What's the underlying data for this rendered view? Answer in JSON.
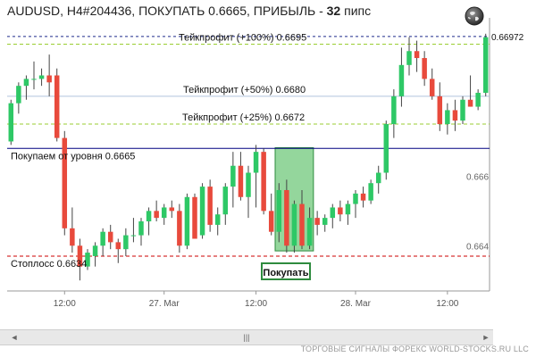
{
  "header": {
    "symbol_line": "AUDUSD, H4#204436, ПОКУПАТЬ 0.6665, ПРИБЫЛЬ - ",
    "profit_pips": "32",
    "profit_unit": " пипс"
  },
  "chart_data": {
    "type": "candlestick",
    "instrument": "AUDUSD",
    "timeframe": "H4",
    "ylim": [
      0.6625,
      0.67
    ],
    "price_ticks": [
      "0.66972",
      "0.666",
      "0.664"
    ],
    "time_ticks": [
      "12:00",
      "27. Mar",
      "12:00",
      "28. Mar",
      "12:00"
    ],
    "levels": [
      {
        "name": "Тейкпрофит (+100%) 0.6695",
        "price": 0.6695,
        "color": "#9acd32",
        "style": "dashed"
      },
      {
        "name": "Тейкпрофит (+50%) 0.6680",
        "price": 0.668,
        "color": "#b0c4de",
        "style": "solid"
      },
      {
        "name": "Тейкпрофит (+25%) 0.6672",
        "price": 0.6672,
        "color": "#9acd32",
        "style": "dashed"
      },
      {
        "name": "Покупаем от уровня 0.6665",
        "price": 0.6665,
        "color": "#000080",
        "style": "solid"
      },
      {
        "name": "Стоплосс 0.6634",
        "price": 0.6634,
        "color": "#cc0000",
        "style": "dashed"
      }
    ],
    "current_price": 0.66972,
    "entry_zone": {
      "from_candle": 35,
      "to_candle": 39,
      "low": 0.66355,
      "high": 0.66652
    },
    "candles": [
      [
        0.6667,
        0.6679,
        0.6666,
        0.6678
      ],
      [
        0.6678,
        0.6684,
        0.6675,
        0.6683
      ],
      [
        0.6683,
        0.6686,
        0.6679,
        0.6685
      ],
      [
        0.6685,
        0.669,
        0.6682,
        0.6685
      ],
      [
        0.6685,
        0.6688,
        0.6683,
        0.6686
      ],
      [
        0.6686,
        0.6692,
        0.668,
        0.6684
      ],
      [
        0.6686,
        0.6688,
        0.6667,
        0.6668
      ],
      [
        0.6668,
        0.667,
        0.664,
        0.6642
      ],
      [
        0.6642,
        0.6648,
        0.6635,
        0.6637
      ],
      [
        0.6637,
        0.6639,
        0.6627,
        0.6631
      ],
      [
        0.6631,
        0.6636,
        0.663,
        0.6635
      ],
      [
        0.6634,
        0.6638,
        0.6631,
        0.6637
      ],
      [
        0.6637,
        0.6642,
        0.6634,
        0.6641
      ],
      [
        0.6641,
        0.6643,
        0.6636,
        0.6638
      ],
      [
        0.6638,
        0.6639,
        0.6632,
        0.6636
      ],
      [
        0.6636,
        0.6642,
        0.6634,
        0.664
      ],
      [
        0.664,
        0.6645,
        0.6638,
        0.664
      ],
      [
        0.664,
        0.6645,
        0.6637,
        0.6644
      ],
      [
        0.6644,
        0.6648,
        0.664,
        0.6647
      ],
      [
        0.6647,
        0.665,
        0.6644,
        0.6645
      ],
      [
        0.6645,
        0.6649,
        0.6643,
        0.6648
      ],
      [
        0.6648,
        0.665,
        0.6645,
        0.6647
      ],
      [
        0.6647,
        0.6649,
        0.6635,
        0.6637
      ],
      [
        0.6637,
        0.6652,
        0.6636,
        0.6651
      ],
      [
        0.6651,
        0.6652,
        0.6639,
        0.6639
      ],
      [
        0.664,
        0.6655,
        0.6639,
        0.6654
      ],
      [
        0.6654,
        0.6656,
        0.6641,
        0.6643
      ],
      [
        0.6643,
        0.6648,
        0.664,
        0.6646
      ],
      [
        0.6646,
        0.6655,
        0.6643,
        0.6654
      ],
      [
        0.6654,
        0.6664,
        0.6648,
        0.666
      ],
      [
        0.666,
        0.6664,
        0.665,
        0.6651
      ],
      [
        0.6651,
        0.666,
        0.6645,
        0.6658
      ],
      [
        0.6658,
        0.6666,
        0.6648,
        0.6664
      ],
      [
        0.6664,
        0.6665,
        0.6646,
        0.6647
      ],
      [
        0.6647,
        0.6652,
        0.664,
        0.6641
      ],
      [
        0.6641,
        0.6655,
        0.6638,
        0.6653
      ],
      [
        0.6653,
        0.6656,
        0.6635,
        0.6637
      ],
      [
        0.6637,
        0.665,
        0.6635,
        0.6649
      ],
      [
        0.6649,
        0.6653,
        0.6636,
        0.6637
      ],
      [
        0.6637,
        0.6648,
        0.6636,
        0.6645
      ],
      [
        0.6645,
        0.6647,
        0.664,
        0.6643
      ],
      [
        0.6643,
        0.6646,
        0.6641,
        0.6645
      ],
      [
        0.6645,
        0.6649,
        0.6642,
        0.6648
      ],
      [
        0.6648,
        0.665,
        0.6644,
        0.6646
      ],
      [
        0.6646,
        0.665,
        0.6643,
        0.6649
      ],
      [
        0.6649,
        0.6653,
        0.6645,
        0.6652
      ],
      [
        0.6652,
        0.6654,
        0.6648,
        0.665
      ],
      [
        0.665,
        0.6656,
        0.6649,
        0.6655
      ],
      [
        0.6655,
        0.666,
        0.6652,
        0.6658
      ],
      [
        0.6658,
        0.6673,
        0.6656,
        0.6672
      ],
      [
        0.6672,
        0.6682,
        0.6668,
        0.668
      ],
      [
        0.668,
        0.6694,
        0.6677,
        0.6689
      ],
      [
        0.6689,
        0.6697,
        0.6686,
        0.6693
      ],
      [
        0.6693,
        0.6696,
        0.6687,
        0.6691
      ],
      [
        0.6691,
        0.6693,
        0.6683,
        0.6685
      ],
      [
        0.6685,
        0.6688,
        0.6679,
        0.668
      ],
      [
        0.668,
        0.6684,
        0.667,
        0.6672
      ],
      [
        0.6672,
        0.6678,
        0.6669,
        0.6676
      ],
      [
        0.6676,
        0.6679,
        0.667,
        0.6673
      ],
      [
        0.6673,
        0.668,
        0.6672,
        0.6679
      ],
      [
        0.6679,
        0.6686,
        0.6677,
        0.6677
      ],
      [
        0.6677,
        0.6682,
        0.6676,
        0.6681
      ],
      [
        0.6681,
        0.6698,
        0.668,
        0.6697
      ]
    ]
  },
  "buy_button": {
    "label": "Покупать"
  },
  "scrollbar": {
    "left_arrow": "◄",
    "right_arrow": "►",
    "thumb": "|||"
  },
  "footer": {
    "text": "ТОРГОВЫЕ СИГНАЛЫ ФОРЕКС WORLD-STOCKS.RU LLC"
  },
  "colors": {
    "bull": "#2ec866",
    "bear": "#e84a3c",
    "wick": "#444444",
    "zone": "#3cb44b",
    "grid": "#e6e6e6"
  },
  "icons": {
    "globe": "globe-icon"
  }
}
